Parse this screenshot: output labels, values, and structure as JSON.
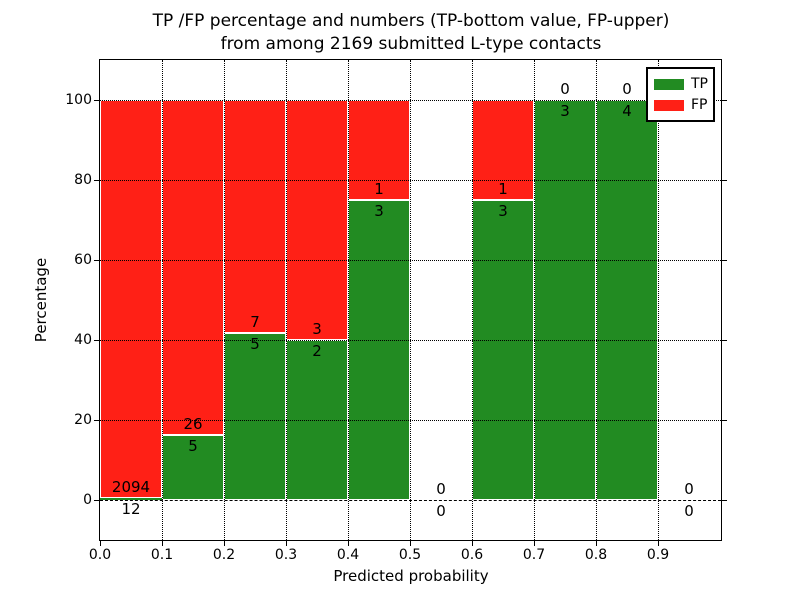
{
  "title": {
    "line1": "TP /FP percentage and numbers (TP-bottom value, FP-upper)",
    "line2": "from among 2169 submitted L-type contacts"
  },
  "chart_data": {
    "type": "bar",
    "stacked": true,
    "title": "TP /FP percentage and numbers (TP-bottom value, FP-upper) from among 2169 submitted L-type contacts",
    "xlabel": "Predicted probability",
    "ylabel": "Percentage",
    "xlim": [
      0.0,
      1.0
    ],
    "ylim": [
      -10,
      110
    ],
    "xtick_labels": [
      "0.0",
      "0.1",
      "0.2",
      "0.3",
      "0.4",
      "0.5",
      "0.6",
      "0.7",
      "0.8",
      "0.9"
    ],
    "ytick_values": [
      0,
      20,
      40,
      60,
      80,
      100
    ],
    "grid": "dotted black gridlines at every tick, drawn above bars; dashed line at y=0",
    "bar_unit": "percentage of bin total; TP green bottom segment, FP red upper segment; labels show raw counts (FP above the TP/FP boundary, TP below it)",
    "bins": [
      {
        "x_start": 0.0,
        "x_end": 0.1,
        "tp": 12,
        "fp": 2094
      },
      {
        "x_start": 0.1,
        "x_end": 0.2,
        "tp": 5,
        "fp": 26
      },
      {
        "x_start": 0.2,
        "x_end": 0.3,
        "tp": 5,
        "fp": 7
      },
      {
        "x_start": 0.3,
        "x_end": 0.4,
        "tp": 2,
        "fp": 3
      },
      {
        "x_start": 0.4,
        "x_end": 0.5,
        "tp": 3,
        "fp": 1
      },
      {
        "x_start": 0.5,
        "x_end": 0.6,
        "tp": 0,
        "fp": 0
      },
      {
        "x_start": 0.6,
        "x_end": 0.7,
        "tp": 3,
        "fp": 1
      },
      {
        "x_start": 0.7,
        "x_end": 0.8,
        "tp": 3,
        "fp": 0
      },
      {
        "x_start": 0.8,
        "x_end": 0.9,
        "tp": 4,
        "fp": 0
      },
      {
        "x_start": 0.9,
        "x_end": 1.0,
        "tp": 0,
        "fp": 0
      }
    ],
    "legend": {
      "position": "upper right",
      "entries": [
        {
          "label": "TP",
          "color": "#228b22"
        },
        {
          "label": "FP",
          "color": "#ff2016"
        }
      ]
    },
    "colors": {
      "tp": "#228b22",
      "fp": "#ff2016",
      "grid": "#000000",
      "background": "#ffffff"
    }
  }
}
